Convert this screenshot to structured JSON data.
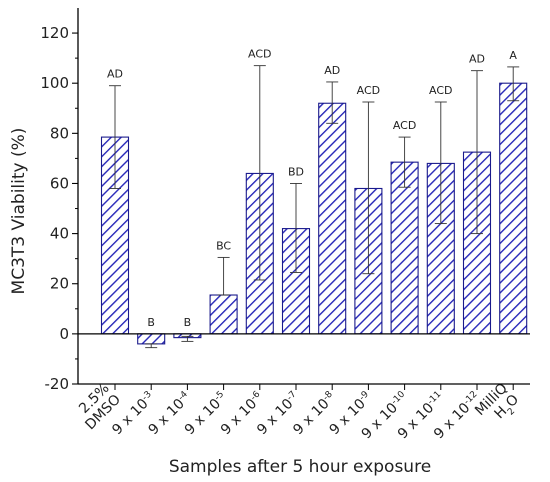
{
  "chart_data": {
    "type": "bar",
    "title": "",
    "xlabel": "Samples after 5 hour exposure",
    "ylabel": "MC3T3 Viability (%)",
    "ylim": [
      -20,
      130
    ],
    "yticks": [
      -20,
      0,
      20,
      40,
      60,
      80,
      100,
      120
    ],
    "grid": false,
    "bar_fill": "hatched",
    "colors": {
      "bar_stroke": "#1a1a8c",
      "hatch": "#2626b8",
      "axis": "#000000"
    },
    "categories": [
      {
        "lines": [
          [
            "2.5%",
            ""
          ],
          [
            "DMSO",
            ""
          ]
        ]
      },
      {
        "lines": [
          [
            "9 x 10",
            "-3"
          ]
        ]
      },
      {
        "lines": [
          [
            "9 x 10",
            "-4"
          ]
        ]
      },
      {
        "lines": [
          [
            "9 x 10",
            "-5"
          ]
        ]
      },
      {
        "lines": [
          [
            "9 x 10",
            "-6"
          ]
        ]
      },
      {
        "lines": [
          [
            "9 x 10",
            "-7"
          ]
        ]
      },
      {
        "lines": [
          [
            "9 x 10",
            "-8"
          ]
        ]
      },
      {
        "lines": [
          [
            "9 x 10",
            "-9"
          ]
        ]
      },
      {
        "lines": [
          [
            "9 x 10",
            "-10"
          ]
        ]
      },
      {
        "lines": [
          [
            "9 x 10",
            "-11"
          ]
        ]
      },
      {
        "lines": [
          [
            "9 x 10",
            "-12"
          ]
        ]
      },
      {
        "lines": [
          [
            "MilliQ",
            ""
          ],
          [
            "H",
            "2",
            "O"
          ]
        ]
      }
    ],
    "values": [
      78.5,
      -4,
      -1.5,
      15.5,
      64,
      42,
      92,
      58,
      68.5,
      68,
      72.5,
      100
    ],
    "error_low": [
      58,
      -5.5,
      -3,
      15.5,
      21.5,
      24.5,
      84,
      24,
      58.5,
      44,
      40,
      93
    ],
    "error_high": [
      99,
      -4,
      -1,
      30.5,
      107,
      60,
      100.5,
      92.5,
      78.5,
      92.5,
      105,
      106.5
    ],
    "significance": [
      "AD",
      "B",
      "B",
      "BC",
      "ACD",
      "BD",
      "AD",
      "ACD",
      "ACD",
      "ACD",
      "AD",
      "A"
    ]
  }
}
